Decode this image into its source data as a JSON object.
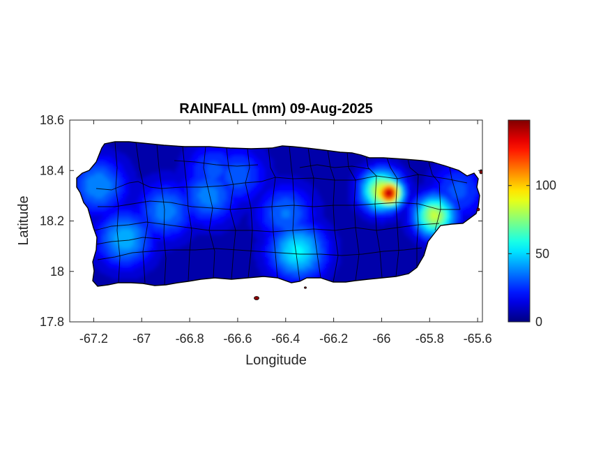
{
  "chart_data": {
    "type": "heatmap",
    "title": "RAINFALL (mm) 09-Aug-2025",
    "xlabel": "Longitude",
    "ylabel": "Latitude",
    "xlim": [
      -67.3,
      -65.58
    ],
    "ylim": [
      17.8,
      18.6
    ],
    "x_ticks": [
      -67.2,
      -67,
      -66.8,
      -66.6,
      -66.4,
      -66.2,
      -66,
      -65.8,
      -65.6
    ],
    "x_tick_labels": [
      "-67.2",
      "-67",
      "-66.8",
      "-66.6",
      "-66.4",
      "-66.2",
      "-66",
      "-65.8",
      "-65.6"
    ],
    "y_ticks": [
      17.8,
      18,
      18.2,
      18.4,
      18.6
    ],
    "y_tick_labels": [
      "17.8",
      "18",
      "18.2",
      "18.4",
      "18.6"
    ],
    "colorbar": {
      "colormap": "jet",
      "range": [
        0,
        148
      ],
      "ticks": [
        0,
        50,
        100
      ],
      "tick_labels": [
        "0",
        "50",
        "100"
      ]
    },
    "rainfall_hotspots": [
      {
        "lon": -65.97,
        "lat": 18.31,
        "value": 145
      },
      {
        "lon": -66.0,
        "lat": 18.32,
        "value": 90
      },
      {
        "lon": -65.78,
        "lat": 18.22,
        "value": 85
      },
      {
        "lon": -66.35,
        "lat": 18.08,
        "value": 55
      },
      {
        "lon": -67.07,
        "lat": 18.13,
        "value": 45
      },
      {
        "lon": -67.18,
        "lat": 18.34,
        "value": 40
      },
      {
        "lon": -66.72,
        "lat": 18.3,
        "value": 38
      },
      {
        "lon": -66.9,
        "lat": 18.24,
        "value": 38
      },
      {
        "lon": -66.4,
        "lat": 18.23,
        "value": 35
      },
      {
        "lon": -66.6,
        "lat": 18.38,
        "value": 32
      },
      {
        "lon": -65.68,
        "lat": 18.32,
        "value": 30
      },
      {
        "lon": -66.7,
        "lat": 18.4,
        "value": 30
      }
    ],
    "background_value": 5
  }
}
